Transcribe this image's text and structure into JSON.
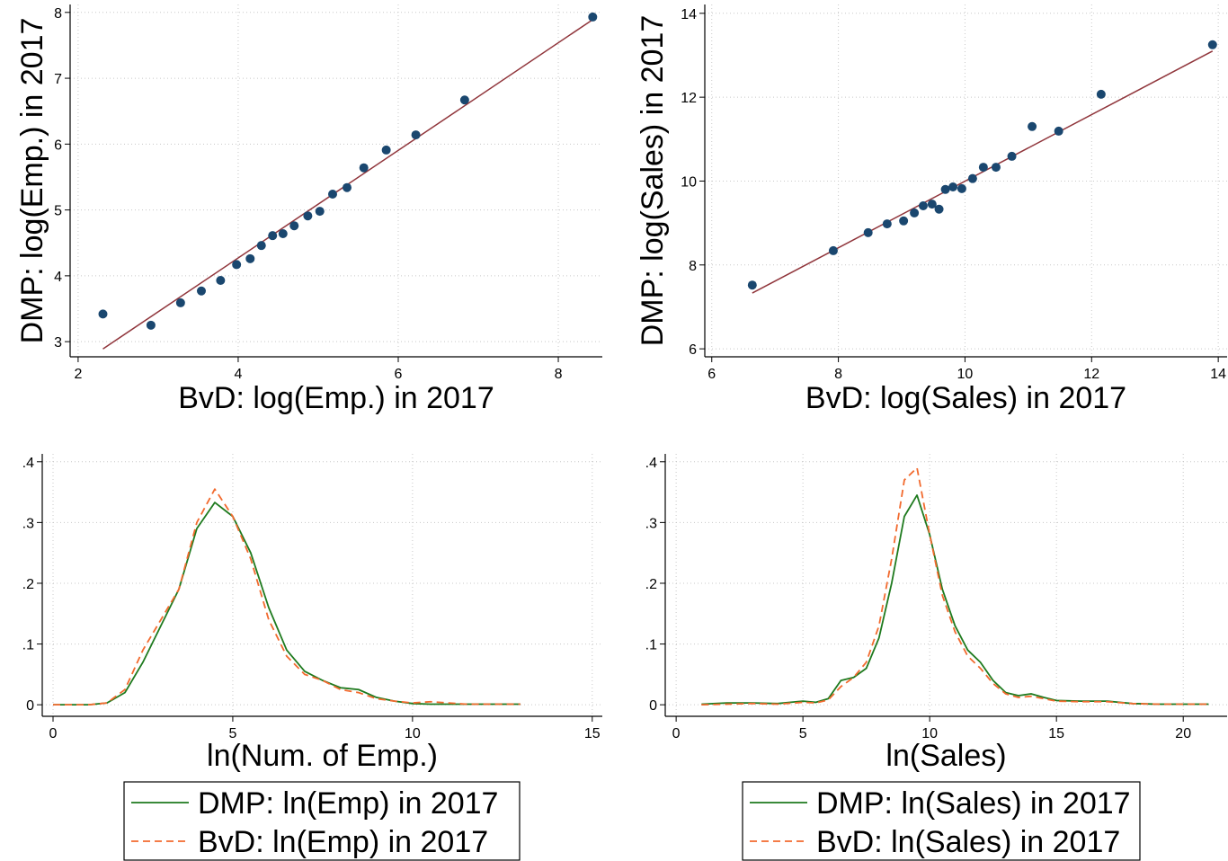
{
  "chart_data": [
    {
      "type": "scatter",
      "xlabel": "BvD: log(Emp.) in 2017",
      "ylabel": "DMP: log(Emp.) in 2017",
      "xlim": [
        1.9,
        8.55
      ],
      "ylim": [
        2.77,
        8.12
      ],
      "xticks": [
        2,
        4,
        6,
        8
      ],
      "yticks": [
        3,
        4,
        5,
        6,
        7,
        8
      ],
      "grid": true,
      "points": {
        "color": "#1a476f",
        "x": [
          2.31,
          2.91,
          3.28,
          3.54,
          3.78,
          3.98,
          4.15,
          4.29,
          4.43,
          4.56,
          4.7,
          4.87,
          5.02,
          5.18,
          5.36,
          5.57,
          5.85,
          6.22,
          6.83,
          8.43
        ],
        "y": [
          3.42,
          3.25,
          3.59,
          3.77,
          3.93,
          4.17,
          4.26,
          4.46,
          4.61,
          4.64,
          4.76,
          4.91,
          4.98,
          5.24,
          5.34,
          5.64,
          5.91,
          6.14,
          6.67,
          7.93
        ]
      },
      "fit": {
        "color": "#90353b",
        "x": [
          2.31,
          8.43
        ],
        "y": [
          2.89,
          7.89
        ]
      }
    },
    {
      "type": "scatter",
      "xlabel": "BvD: log(Sales) in 2017",
      "ylabel": "DMP: log(Sales) in 2017",
      "xlim": [
        5.89,
        14.14
      ],
      "ylim": [
        5.81,
        14.21
      ],
      "xticks": [
        6,
        8,
        10,
        12,
        14
      ],
      "yticks": [
        6,
        8,
        10,
        12,
        14
      ],
      "grid": true,
      "points": {
        "color": "#1a476f",
        "x": [
          6.64,
          7.92,
          8.47,
          8.77,
          9.03,
          9.2,
          9.34,
          9.48,
          9.59,
          9.69,
          9.81,
          9.95,
          10.12,
          10.29,
          10.49,
          10.74,
          11.06,
          11.48,
          12.15,
          13.91
        ],
        "y": [
          7.52,
          8.34,
          8.77,
          8.98,
          9.05,
          9.24,
          9.41,
          9.45,
          9.33,
          9.8,
          9.86,
          9.82,
          10.06,
          10.33,
          10.33,
          10.59,
          11.3,
          11.19,
          12.07,
          13.25
        ]
      },
      "fit": {
        "color": "#90353b",
        "x": [
          6.64,
          13.91
        ],
        "y": [
          7.33,
          13.1
        ]
      }
    },
    {
      "type": "line",
      "xlabel": "ln(Num. of Emp.)",
      "xlim": [
        -0.3,
        15.28
      ],
      "ylim": [
        -0.019,
        0.413
      ],
      "xticks": [
        0,
        5,
        10,
        15
      ],
      "yticks": [
        0,
        {
          "value": 0.1,
          "label": ".1"
        },
        {
          "value": 0.2,
          "label": ".2"
        },
        {
          "value": 0.3,
          "label": ".3"
        },
        {
          "value": 0.4,
          "label": ".4"
        }
      ],
      "grid": true,
      "x": [
        0,
        0.5,
        1,
        1.5,
        2,
        2.5,
        3,
        3.5,
        4,
        4.5,
        5,
        5.5,
        6,
        6.5,
        7,
        7.5,
        8,
        8.5,
        9,
        9.5,
        10,
        10.5,
        11,
        11.5,
        12,
        12.5,
        13
      ],
      "series": [
        {
          "name": "DMP: ln(Emp) in 2017",
          "color": "#1e7a1e",
          "style": "solid",
          "values": [
            0,
            0,
            0,
            0.003,
            0.02,
            0.07,
            0.13,
            0.19,
            0.29,
            0.333,
            0.31,
            0.25,
            0.16,
            0.09,
            0.055,
            0.04,
            0.028,
            0.025,
            0.012,
            0.006,
            0.002,
            0.001,
            0.001,
            0.001,
            0.001,
            0.001,
            0.001
          ]
        },
        {
          "name": "BvD: ln(Emp) in 2017",
          "color": "#f26a2e",
          "style": "dashed",
          "values": [
            0,
            0,
            0,
            0.003,
            0.025,
            0.09,
            0.14,
            0.19,
            0.3,
            0.355,
            0.31,
            0.24,
            0.14,
            0.08,
            0.05,
            0.04,
            0.025,
            0.02,
            0.01,
            0.006,
            0.003,
            0.005,
            0.003,
            0.001,
            0.001,
            0.001,
            0.001
          ]
        }
      ]
    },
    {
      "type": "line",
      "xlabel": "ln(Sales)",
      "xlim": [
        -0.43,
        21.73
      ],
      "ylim": [
        -0.019,
        0.413
      ],
      "xticks": [
        0,
        5,
        10,
        15,
        20
      ],
      "yticks": [
        0,
        {
          "value": 0.1,
          "label": ".1"
        },
        {
          "value": 0.2,
          "label": ".2"
        },
        {
          "value": 0.3,
          "label": ".3"
        },
        {
          "value": 0.4,
          "label": ".4"
        }
      ],
      "grid": true,
      "x": [
        1,
        2,
        3,
        4,
        5,
        5.5,
        6,
        6.5,
        7,
        7.5,
        8,
        8.5,
        9,
        9.5,
        10,
        10.5,
        11,
        11.5,
        12,
        12.5,
        13,
        13.5,
        14,
        14.5,
        15,
        16,
        17,
        18,
        19,
        20,
        21
      ],
      "series": [
        {
          "name": "DMP: ln(Sales) in 2017",
          "color": "#1e7a1e",
          "style": "solid",
          "values": [
            0.001,
            0.003,
            0.003,
            0.002,
            0.006,
            0.004,
            0.01,
            0.04,
            0.045,
            0.06,
            0.11,
            0.2,
            0.31,
            0.345,
            0.28,
            0.19,
            0.13,
            0.09,
            0.07,
            0.04,
            0.02,
            0.015,
            0.018,
            0.012,
            0.007,
            0.006,
            0.006,
            0.002,
            0.001,
            0.001,
            0.001
          ]
        },
        {
          "name": "BvD: ln(Sales) in 2017",
          "color": "#f26a2e",
          "style": "dashed",
          "values": [
            0,
            0.001,
            0.002,
            0.001,
            0.004,
            0.003,
            0.008,
            0.03,
            0.045,
            0.07,
            0.13,
            0.24,
            0.37,
            0.39,
            0.28,
            0.18,
            0.12,
            0.08,
            0.06,
            0.035,
            0.018,
            0.012,
            0.014,
            0.01,
            0.006,
            0.005,
            0.005,
            0.002,
            0.001,
            0.001,
            0.001
          ]
        }
      ]
    }
  ]
}
